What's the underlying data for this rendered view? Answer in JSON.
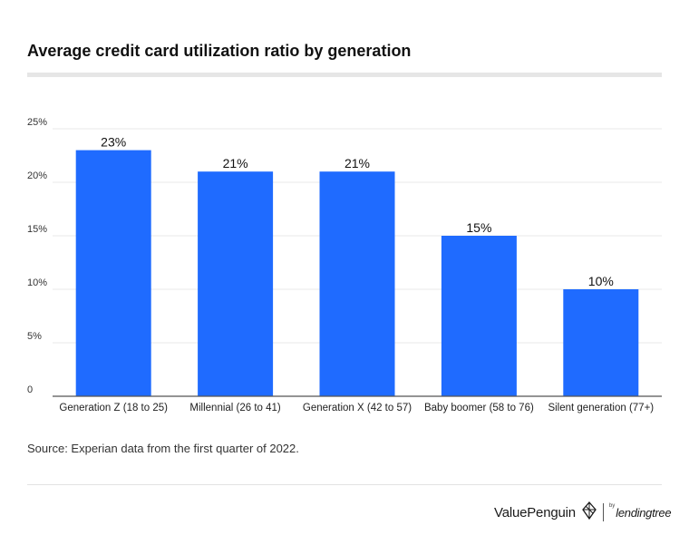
{
  "title": "Average credit card utilization ratio by generation",
  "source": "Source: Experian data from the first quarter of 2022.",
  "brand": {
    "primary": "ValuePenguin",
    "by": "by",
    "secondary": "lendingtree"
  },
  "colors": {
    "bar": "#1f6bff",
    "axis": "#555555",
    "grid": "#e9e9e9"
  },
  "chart_data": {
    "type": "bar",
    "categories": [
      "Generation Z (18 to 25)",
      "Millennial (26 to 41)",
      "Generation X (42 to 57)",
      "Baby boomer (58 to 76)",
      "Silent generation (77+)"
    ],
    "values": [
      23,
      21,
      21,
      15,
      10
    ],
    "value_labels": [
      "23%",
      "21%",
      "21%",
      "15%",
      "10%"
    ],
    "ylim": [
      0,
      25
    ],
    "yticks": [
      0,
      5,
      10,
      15,
      20,
      25
    ],
    "ytick_labels": [
      "0",
      "5%",
      "10%",
      "15%",
      "20%",
      "25%"
    ],
    "grid": true,
    "legend": "none"
  }
}
